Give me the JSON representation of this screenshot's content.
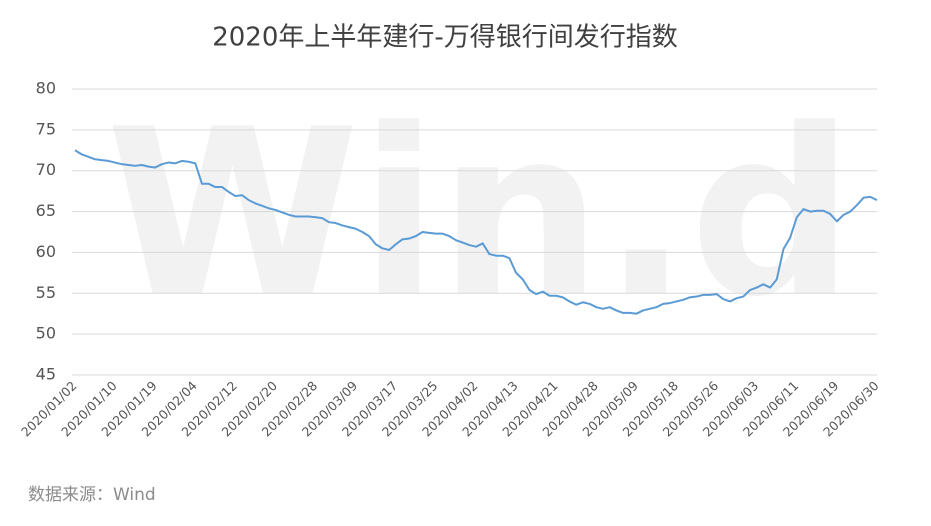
{
  "chart_data": {
    "type": "line",
    "title": "2020年上半年建行-万得银行间发行指数",
    "source": "数据来源：Wind",
    "watermark": "Win.d",
    "categories": [
      "2020/01/02",
      null,
      null,
      null,
      null,
      null,
      "2020/01/10",
      null,
      null,
      null,
      null,
      null,
      "2020/01/19",
      null,
      null,
      null,
      null,
      null,
      "2020/02/04",
      null,
      null,
      null,
      null,
      null,
      "2020/02/12",
      null,
      null,
      null,
      null,
      null,
      "2020/02/20",
      null,
      null,
      null,
      null,
      null,
      "2020/02/28",
      null,
      null,
      null,
      null,
      null,
      "2020/03/09",
      null,
      null,
      null,
      null,
      null,
      "2020/03/17",
      null,
      null,
      null,
      null,
      null,
      "2020/03/25",
      null,
      null,
      null,
      null,
      null,
      "2020/04/02",
      null,
      null,
      null,
      null,
      null,
      "2020/04/13",
      null,
      null,
      null,
      null,
      null,
      "2020/04/21",
      null,
      null,
      null,
      null,
      null,
      "2020/04/28",
      null,
      null,
      null,
      null,
      null,
      "2020/05/09",
      null,
      null,
      null,
      null,
      null,
      "2020/05/18",
      null,
      null,
      null,
      null,
      null,
      "2020/05/26",
      null,
      null,
      null,
      null,
      null,
      "2020/06/03",
      null,
      null,
      null,
      null,
      null,
      "2020/06/11",
      null,
      null,
      null,
      null,
      null,
      "2020/06/19",
      null,
      null,
      null,
      null,
      null,
      "2020/06/30"
    ],
    "values": [
      72.5,
      72.0,
      71.7,
      71.4,
      71.3,
      71.2,
      71.0,
      70.8,
      70.7,
      70.6,
      70.7,
      70.5,
      70.4,
      70.8,
      71.0,
      70.9,
      71.2,
      71.1,
      70.9,
      68.4,
      68.4,
      68.0,
      68.0,
      67.4,
      66.9,
      67.0,
      66.4,
      66.0,
      65.7,
      65.4,
      65.2,
      64.9,
      64.6,
      64.4,
      64.4,
      64.4,
      64.3,
      64.2,
      63.7,
      63.6,
      63.3,
      63.1,
      62.9,
      62.5,
      62.0,
      61.0,
      60.5,
      60.3,
      61.0,
      61.6,
      61.7,
      62.0,
      62.5,
      62.4,
      62.3,
      62.3,
      62.0,
      61.5,
      61.2,
      60.9,
      60.7,
      61.1,
      59.8,
      59.6,
      59.6,
      59.3,
      57.5,
      56.7,
      55.4,
      54.9,
      55.2,
      54.7,
      54.7,
      54.5,
      54.0,
      53.6,
      53.9,
      53.7,
      53.3,
      53.1,
      53.3,
      52.9,
      52.6,
      52.6,
      52.5,
      52.9,
      53.1,
      53.3,
      53.7,
      53.8,
      54.0,
      54.2,
      54.5,
      54.6,
      54.8,
      54.8,
      54.9,
      54.3,
      54.0,
      54.4,
      54.6,
      55.4,
      55.7,
      56.1,
      55.7,
      56.7,
      60.4,
      61.8,
      64.3,
      65.3,
      65.0,
      65.1,
      65.1,
      64.7,
      63.8,
      64.6,
      65.0,
      65.8,
      66.7,
      66.8,
      66.4
    ],
    "color": "#5b9bd5",
    "ylim": [
      45,
      80
    ],
    "yticks": [
      45,
      50,
      55,
      60,
      65,
      70,
      75,
      80
    ],
    "grid": true
  }
}
